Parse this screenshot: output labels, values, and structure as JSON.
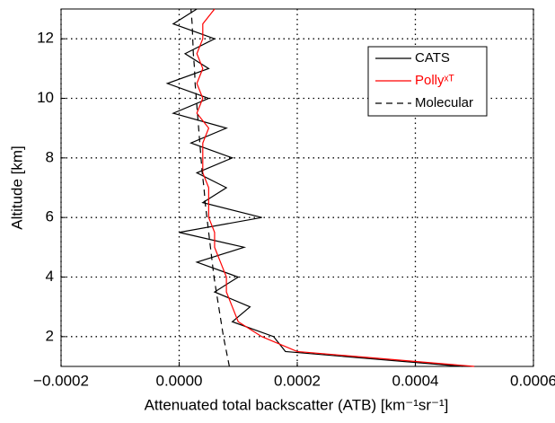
{
  "chart_data": {
    "type": "line",
    "xlabel": "Attenuated total backscatter (ATB) [km⁻¹sr⁻¹]",
    "ylabel": "Altitude [km]",
    "y": [
      1,
      1.5,
      2,
      2.5,
      3,
      3.5,
      4,
      4.5,
      5,
      5.5,
      6,
      6.5,
      7,
      7.5,
      8,
      8.5,
      9,
      9.5,
      10,
      10.5,
      11,
      11.5,
      12,
      12.5,
      13
    ],
    "series": [
      {
        "name": "CATS",
        "color": "#000000",
        "dash": false,
        "values": [
          0.00048,
          0.00018,
          0.00016,
          9e-05,
          0.00012,
          6e-05,
          0.0001,
          3e-05,
          0.00011,
          0,
          0.00014,
          4e-05,
          8e-05,
          3e-05,
          9e-05,
          2e-05,
          8e-05,
          -1e-05,
          5e-05,
          -2e-05,
          5e-05,
          1e-05,
          6e-05,
          -1e-05,
          3e-05
        ]
      },
      {
        "name": "Pollyˣᵀ",
        "color": "#ff0000",
        "dash": false,
        "values": [
          0.0005,
          0.0002,
          0.00014,
          0.0001,
          9e-05,
          8e-05,
          8e-05,
          7e-05,
          6e-05,
          6e-05,
          5e-05,
          5e-05,
          5e-05,
          4e-05,
          4e-05,
          4e-05,
          5e-05,
          3e-05,
          4e-05,
          3e-05,
          4e-05,
          3e-05,
          4e-05,
          4e-05,
          6e-05
        ]
      },
      {
        "name": "Molecular",
        "color": "#000000",
        "dash": true,
        "values": [
          8.5e-05,
          8e-05,
          7.5e-05,
          7.1e-05,
          6.7e-05,
          6.3e-05,
          5.9e-05,
          5.6e-05,
          5.3e-05,
          5e-05,
          4.7e-05,
          4.4e-05,
          4.2e-05,
          3.9e-05,
          3.7e-05,
          3.5e-05,
          3.3e-05,
          3.1e-05,
          2.9e-05,
          2.7e-05,
          2.6e-05,
          2.4e-05,
          2.3e-05,
          2.2e-05,
          2e-05
        ]
      }
    ],
    "xlim": [
      -0.0002,
      0.0006
    ],
    "xticks": [
      {
        "value": -0.0002,
        "label": "−0.0002"
      },
      {
        "value": 0,
        "label": "0.0000"
      },
      0.0002,
      0.0004,
      0.0006
    ],
    "ylim": [
      1,
      13
    ],
    "yticks": [
      2,
      4,
      6,
      8,
      10,
      12
    ],
    "grid": true,
    "legend": "upper right"
  }
}
